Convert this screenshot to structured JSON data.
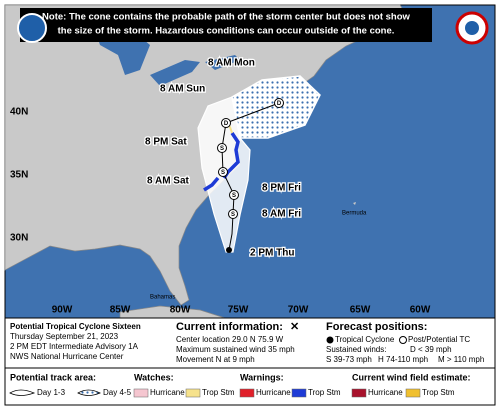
{
  "note": [
    "Note: The cone contains the probable path of the storm center but does not show",
    "the size of the storm. Hazardous conditions can occur outside of the cone."
  ],
  "latitude_labels": [
    "40N",
    "35N",
    "30N"
  ],
  "longitude_labels": [
    "90W",
    "85W",
    "80W",
    "75W",
    "70W",
    "65W",
    "60W"
  ],
  "track_labels": [
    "8 AM Mon",
    "8 AM Sun",
    "8 PM Sat",
    "8 AM Sat",
    "8 PM Fri",
    "8 AM Fri",
    "2 PM Thu"
  ],
  "place_labels": [
    "Bermuda",
    "Bahamas"
  ],
  "forecast_markers": [
    "S",
    "S",
    "S",
    "S",
    "D",
    "D"
  ],
  "storm_info": [
    "Potential Tropical Cyclone Sixteen",
    "Thursday September 21, 2023",
    "2 PM EDT Intermediate Advisory 1A",
    "NWS National Hurricane Center"
  ],
  "current_information": {
    "title": "Current information:",
    "symbol": "✕",
    "lines": [
      "Center location 29.0 N 75.9 W",
      "Maximum sustained wind 35 mph",
      "Movement N at 9 mph"
    ]
  },
  "forecast_positions": {
    "title": "Forecast positions:",
    "tropical_cyclone": "Tropical Cyclone",
    "post_tc": "Post/Potential TC",
    "winds_title": "Sustained winds:",
    "d": "D < 39 mph",
    "s": "S 39-73 mph",
    "h": "H 74-110 mph",
    "m": "M > 110 mph"
  },
  "track_area": {
    "title": "Potential track area:",
    "day13": "Day 1-3",
    "day45": "Day 4-5"
  },
  "watches": {
    "title": "Watches:",
    "hurricane": "Hurricane",
    "trop_stm": "Trop Stm"
  },
  "warnings": {
    "title": "Warnings:",
    "hurricane": "Hurricane",
    "trop_stm": "Trop Stm"
  },
  "wind_field": {
    "title": "Current wind field estimate:",
    "hurricane": "Hurricane",
    "trop_stm": "Trop Stm"
  }
}
